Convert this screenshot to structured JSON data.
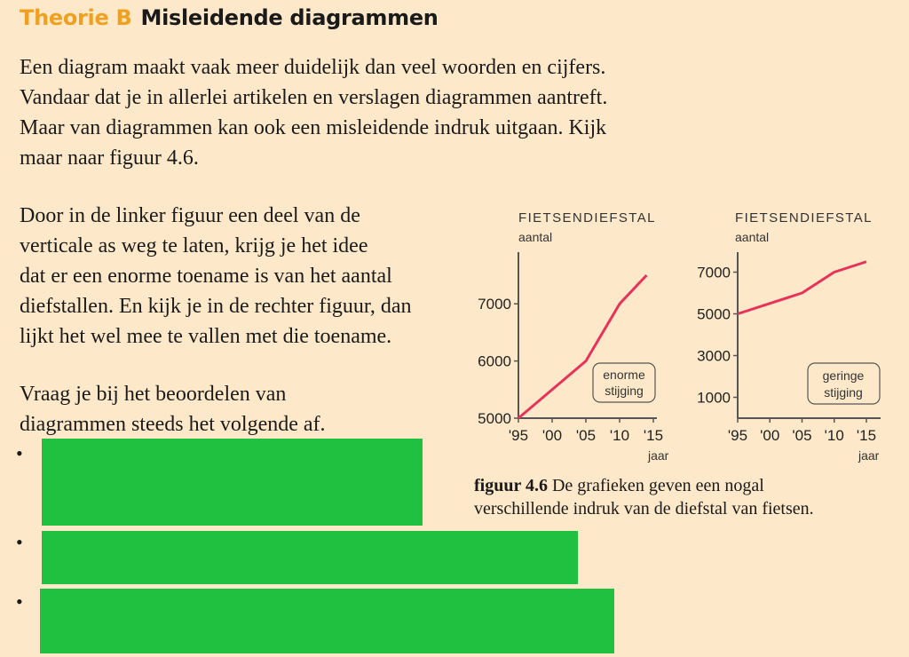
{
  "header": {
    "kicker": "Theorie B",
    "title": "Misleidende diagrammen"
  },
  "intro_lines": [
    "Een diagram maakt vaak meer duidelijk dan veel woorden en cijfers.",
    "Vandaar dat je in allerlei artikelen en verslagen diagrammen aantreft.",
    "Maar van diagrammen kan ook een misleidende indruk uitgaan. Kijk",
    "maar naar figuur 4.6."
  ],
  "paragraph2_lines": [
    "Door in de linker figuur een deel van de",
    "verticale as weg te laten, krijg je het idee",
    "dat er een enorme toename is van het aantal",
    "diefstallen. En kijk je in de rechter figuur, dan",
    "lijkt het wel mee te vallen met die toename."
  ],
  "paragraph3_lines": [
    "Vraag je bij het beoordelen van",
    "diagrammen steeds het volgende af."
  ],
  "bullets": [
    "•",
    "•",
    "•"
  ],
  "caption": {
    "label": "figuur 4.6",
    "line1": " De grafieken geven een nogal",
    "line2": "verschillende indruk van de diefstal van fietsen."
  },
  "chart_data": [
    {
      "type": "line",
      "title": "FIETSENDIEFSTAL",
      "ylabel": "aantal",
      "xlabel": "jaar",
      "x": [
        1995,
        2005,
        2010,
        2014
      ],
      "y": [
        5000,
        6000,
        7000,
        7500
      ],
      "xlim": [
        1995,
        2015
      ],
      "ylim": [
        5000,
        7500
      ],
      "xtick_values": [
        1995,
        2000,
        2005,
        2010,
        2015
      ],
      "xticks": [
        "'95",
        "'00",
        "'05",
        "'10",
        "'15"
      ],
      "ytick_values": [
        5000,
        6000,
        7000
      ],
      "yticks": [
        "5000",
        "6000",
        "7000"
      ],
      "annotation": [
        "enorme",
        "stijging"
      ],
      "line_color": "#e8325a"
    },
    {
      "type": "line",
      "title": "FIETSENDIEFSTAL",
      "ylabel": "aantal",
      "xlabel": "jaar",
      "x": [
        1995,
        2005,
        2010,
        2015
      ],
      "y": [
        5000,
        6000,
        7000,
        7500
      ],
      "xlim": [
        1995,
        2015
      ],
      "ylim": [
        0,
        8000
      ],
      "xtick_values": [
        1995,
        2000,
        2005,
        2010,
        2015
      ],
      "xticks": [
        "'95",
        "'00",
        "'05",
        "'10",
        "'15"
      ],
      "ytick_values": [
        1000,
        3000,
        5000,
        7000
      ],
      "yticks": [
        "1000",
        "3000",
        "5000",
        "7000"
      ],
      "annotation": [
        "geringe",
        "stijging"
      ],
      "line_color": "#e8325a"
    }
  ]
}
